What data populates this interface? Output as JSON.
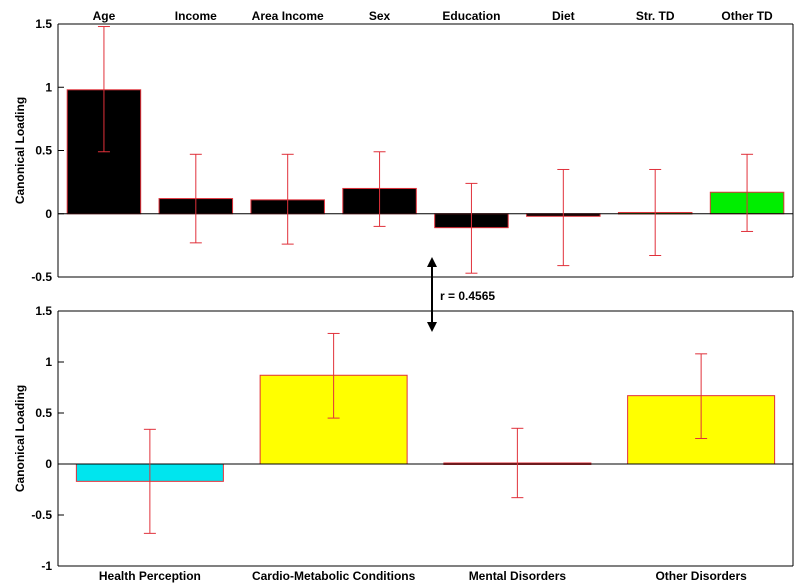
{
  "chart_data": [
    {
      "type": "bar",
      "ylabel": "Canonical Loading",
      "ylim": [
        -0.5,
        1.5
      ],
      "yticks": [
        -0.5,
        0,
        0.5,
        1,
        1.5
      ],
      "ytick_labels": [
        "-0.5",
        "0",
        "0.5",
        "1",
        "1.5"
      ],
      "categories": [
        "Age",
        "Income",
        "Area Income",
        "Sex",
        "Education",
        "Diet",
        "Str. TD",
        "Other TD"
      ],
      "category_label_position": "top",
      "values": [
        0.98,
        0.12,
        0.11,
        0.2,
        -0.11,
        -0.02,
        0.01,
        0.17
      ],
      "error_low": [
        0.49,
        -0.23,
        -0.24,
        -0.1,
        -0.47,
        -0.41,
        -0.33,
        -0.14
      ],
      "error_high": [
        1.48,
        0.47,
        0.47,
        0.49,
        0.24,
        0.35,
        0.35,
        0.47
      ],
      "bar_colors": [
        "#000000",
        "#000000",
        "#000000",
        "#000000",
        "#000000",
        "#000000",
        "#33cc33",
        "#00ee00"
      ],
      "bar_edge_color": "#e0303a",
      "error_color": "#e0303a"
    },
    {
      "type": "bar",
      "ylabel": "Canonical Loading",
      "ylim": [
        -1,
        1.5
      ],
      "yticks": [
        -1,
        -0.5,
        0,
        0.5,
        1,
        1.5
      ],
      "ytick_labels": [
        "-1",
        "-0.5",
        "0",
        "0.5",
        "1",
        "1.5"
      ],
      "categories": [
        "Health Perception",
        "Cardio-Metabolic Conditions",
        "Mental Disorders",
        "Other Disorders"
      ],
      "category_label_position": "bottom",
      "values": [
        -0.17,
        0.87,
        0.01,
        0.67
      ],
      "error_low": [
        -0.68,
        0.45,
        -0.33,
        0.25
      ],
      "error_high": [
        0.34,
        1.28,
        0.35,
        1.08
      ],
      "bar_colors": [
        "#00e5ee",
        "#ffff00",
        "#ff8c00",
        "#ffff00"
      ],
      "bar_edge_color": "#e0303a",
      "error_color": "#e0303a"
    }
  ],
  "annotation": {
    "text": "r = 0.4565"
  },
  "colors": {
    "axis": "#000000",
    "error": "#e0303a",
    "background": "#ffffff"
  }
}
